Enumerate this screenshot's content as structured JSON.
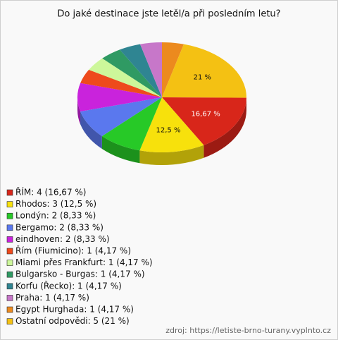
{
  "chart_data": {
    "type": "pie",
    "title": "Do jaké destinace jste letěl/a při posledním letu?",
    "categories": [
      "ŘÍM: 4 (16,67 %)",
      "Rhodos: 3 (12,5 %)",
      "Londýn: 2 (8,33 %)",
      "Bergamo: 2 (8,33 %)",
      "eindhoven: 2 (8,33 %)",
      "Řím (Fiumicino): 1 (4,17 %)",
      "Miami přes Frankfurt: 1 (4,17 %)",
      "Bulgarsko - Burgas: 1 (4,17 %)",
      "Korfu (Řecko): 1 (4,17 %)",
      "Praha: 1 (4,17 %)",
      "Egypt Hurghada: 1 (4,17 %)",
      "Ostatní odpovědi: 5 (21 %)"
    ],
    "values": [
      16.67,
      12.5,
      8.33,
      8.33,
      8.33,
      4.17,
      4.17,
      4.17,
      4.17,
      4.17,
      4.17,
      21
    ],
    "value_labels": [
      "16,67 %",
      "12,5 %",
      null,
      null,
      null,
      null,
      null,
      null,
      null,
      null,
      null,
      "21 %"
    ],
    "colors": [
      "#d8261a",
      "#f7e10c",
      "#27c927",
      "#5a78ee",
      "#c923dc",
      "#ee4a1c",
      "#cdf79a",
      "#2f9a63",
      "#2f8592",
      "#c777c9",
      "#ec8a1e",
      "#f4c113"
    ],
    "source": "zdroj: https://letiste-brno-turany.vyplnto.cz"
  }
}
